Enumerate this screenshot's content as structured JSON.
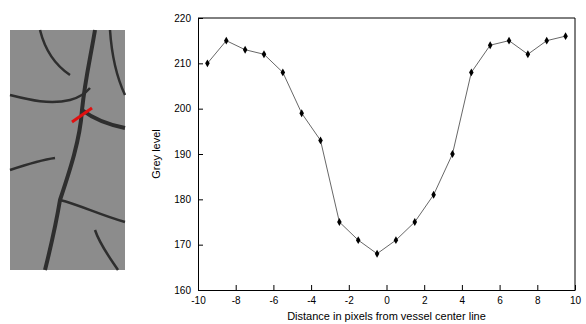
{
  "chart_data": {
    "type": "line",
    "x": [
      -9.5,
      -8.5,
      -7.5,
      -6.5,
      -5.5,
      -4.5,
      -3.5,
      -2.5,
      -1.5,
      -0.5,
      0.5,
      1.5,
      2.5,
      3.5,
      4.5,
      5.5,
      6.5,
      7.5,
      8.5,
      9.5
    ],
    "values": [
      210,
      215,
      213,
      212,
      208,
      199,
      193,
      175,
      171,
      168,
      171,
      175,
      181,
      190,
      208,
      214,
      215,
      212,
      215,
      216
    ],
    "xlabel": "Distance in pixels from vessel center line",
    "ylabel": "Grey level",
    "xlim": [
      -10,
      10
    ],
    "ylim": [
      160,
      220
    ],
    "xticks": [
      -10,
      -8,
      -6,
      -4,
      -2,
      0,
      2,
      4,
      6,
      8,
      10
    ],
    "yticks": [
      160,
      170,
      180,
      190,
      200,
      210,
      220
    ],
    "color": "#000000",
    "marker": "diamond"
  }
}
